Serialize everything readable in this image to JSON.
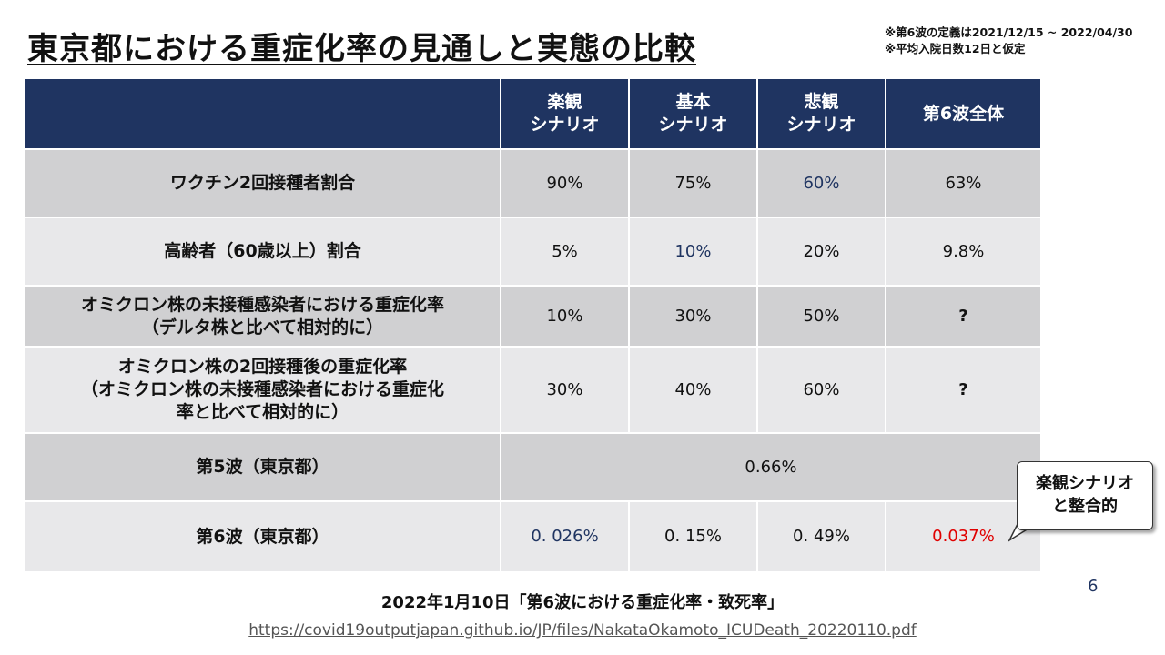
{
  "title": "東京都における重症化率の見通しと実態の比較",
  "notes": [
    "※第6波の定義は2021/12/15 ~ 2022/04/30",
    "※平均入院日数12日と仮定"
  ],
  "table": {
    "headers": [
      "",
      "楽観\nシナリオ",
      "基本\nシナリオ",
      "悲観\nシナリオ",
      "第6波全体"
    ],
    "rows": [
      {
        "label": "ワクチン2回接種者割合",
        "values": [
          "90%",
          "75%",
          "60%",
          "63%"
        ]
      },
      {
        "label": "高齢者（60歳以上）割合",
        "values": [
          "5%",
          "10%",
          "20%",
          "9.8%"
        ]
      },
      {
        "label": "オミクロン株の未接種感染者における重症化率\n（デルタ株と比べて相対的に）",
        "values": [
          "10%",
          "30%",
          "50%",
          "?"
        ]
      },
      {
        "label": "オミクロン株の2回接種後の重症化率\n（オミクロン株の未接種感染者における重症化\n率と比べて相対的に）",
        "values": [
          "30%",
          "40%",
          "60%",
          "?"
        ]
      },
      {
        "label": "第5波（東京都）",
        "merged_value": "0.66%"
      },
      {
        "label": "第6波（東京都）",
        "values": [
          "0. 026%",
          "0. 15%",
          "0. 49%",
          "0.037%"
        ]
      }
    ]
  },
  "callout": {
    "text": "楽観シナリオ\nと整合的"
  },
  "page_number": "6",
  "source": {
    "title": "2022年1月10日「第6波における重症化率・致死率」",
    "url": "https://covid19outputjapan.github.io/JP/files/NakataOkamoto_ICUDeath_20220110.pdf"
  },
  "colors": {
    "header_bg": "#1f3461",
    "row_dark": "#d0d0d2",
    "row_light": "#e8e8ea",
    "highlight_blue": "#1f3461",
    "highlight_red": "#e00000"
  }
}
